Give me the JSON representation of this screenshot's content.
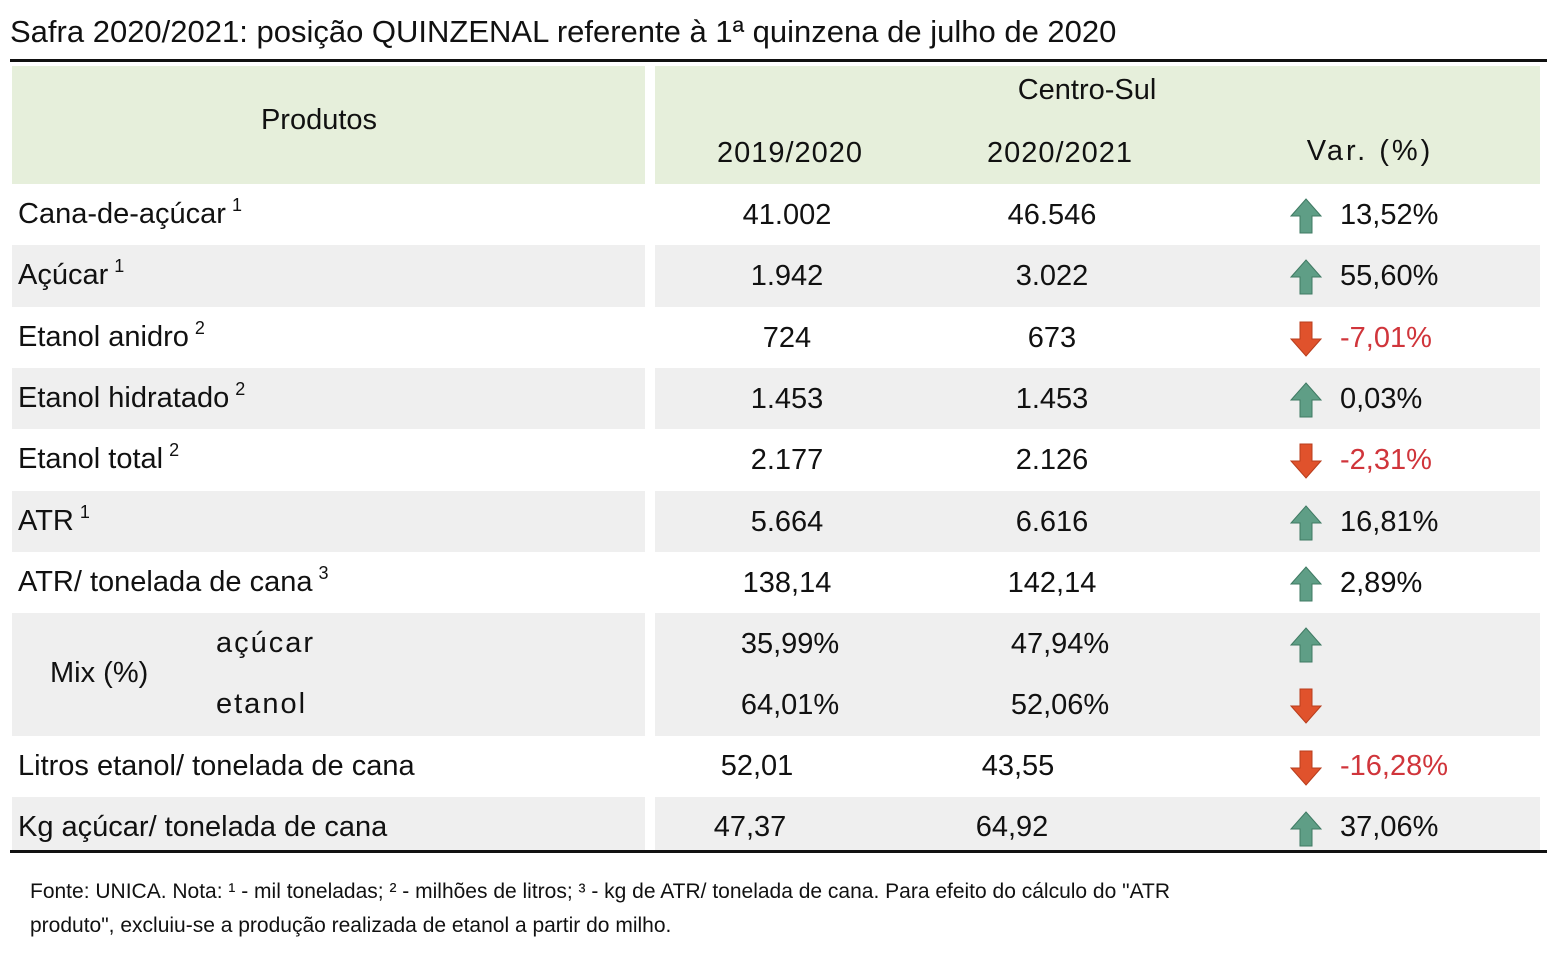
{
  "title": "Safra 2020/2021: posição QUINZENAL referente à 1ª quinzena de julho de 2020",
  "table": {
    "header": {
      "products": "Produtos",
      "region": "Centro-Sul",
      "col1": "2019/2020",
      "col2": "2020/2021",
      "var": "Var. (%)"
    },
    "rows": [
      {
        "label": "Cana-de-açúcar",
        "note": "1",
        "v1": "41.002",
        "v2": "46.546",
        "var": "13,52%"
      },
      {
        "label": "Açúcar",
        "note": "1",
        "v1": "1.942",
        "v2": "3.022",
        "var": "55,60%"
      },
      {
        "label": "Etanol anidro",
        "note": "2",
        "v1": "724",
        "v2": "673",
        "var": "-7,01%"
      },
      {
        "label": "Etanol hidratado",
        "note": "2",
        "v1": "1.453",
        "v2": "1.453",
        "var": "0,03%"
      },
      {
        "label": "Etanol total",
        "note": "2",
        "v1": "2.177",
        "v2": "2.126",
        "var": "-2,31%"
      },
      {
        "label": "ATR",
        "note": "1",
        "v1": "5.664",
        "v2": "6.616",
        "var": "16,81%"
      },
      {
        "label": "ATR/ tonelada de cana",
        "note": "3",
        "v1": "138,14",
        "v2": "142,14",
        "var": "2,89%"
      }
    ],
    "mix": {
      "label": "Mix (%)",
      "rows": [
        {
          "label": "açúcar",
          "v1": "35,99%",
          "v2": "47,94%"
        },
        {
          "label": "etanol",
          "v1": "64,01%",
          "v2": "52,06%"
        }
      ]
    },
    "tail_rows": [
      {
        "label": "Litros etanol/ tonelada de cana",
        "v1": "52,01",
        "v2": "43,55",
        "var": "-16,28%"
      },
      {
        "label": "Kg açúcar/ tonelada de cana",
        "v1": "47,37",
        "v2": "64,92",
        "var": "37,06%"
      }
    ]
  },
  "footnote": [
    "Fonte: UNICA. Nota: ¹ - mil toneladas; ² - milhões de litros; ³ - kg de ATR/ tonelada de cana. Para efeito do cálculo do \"ATR",
    "produto\", excluiu-se a produção realizada de etanol a partir do milho."
  ]
}
